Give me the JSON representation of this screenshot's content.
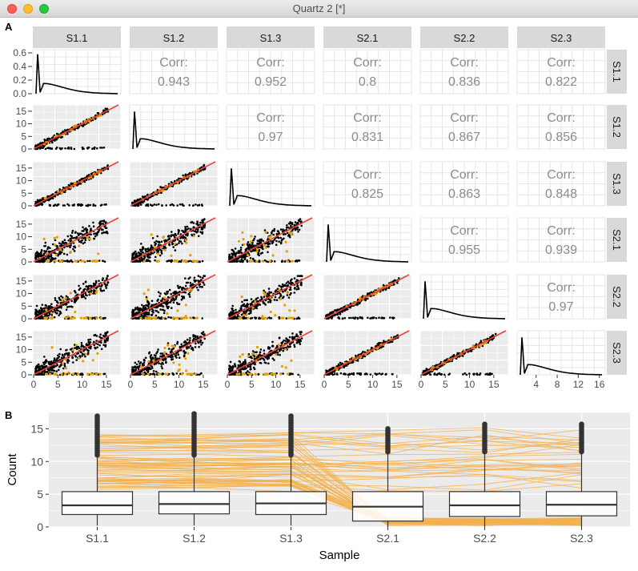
{
  "window": {
    "title": "Quartz 2 [*]"
  },
  "colors": {
    "panel_bg": "#ebebeb",
    "grid": "#ffffff",
    "strip_bg": "#d9d9d9",
    "point_black": "#000000",
    "point_orange": "#e69f00",
    "diagonal_red": "#e8423b",
    "line_orange": "#f3b04c",
    "corr_text": "#8c8c8c"
  },
  "panel_a": {
    "tag": "A",
    "samples": [
      "S1.1",
      "S1.2",
      "S1.3",
      "S2.1",
      "S2.2",
      "S2.3"
    ],
    "corr_label": "Corr:",
    "correlations": [
      {
        "row": 0,
        "col": 1,
        "value": "0.943"
      },
      {
        "row": 0,
        "col": 2,
        "value": "0.952"
      },
      {
        "row": 0,
        "col": 3,
        "value": "0.8"
      },
      {
        "row": 0,
        "col": 4,
        "value": "0.836"
      },
      {
        "row": 0,
        "col": 5,
        "value": "0.822"
      },
      {
        "row": 1,
        "col": 2,
        "value": "0.97"
      },
      {
        "row": 1,
        "col": 3,
        "value": "0.831"
      },
      {
        "row": 1,
        "col": 4,
        "value": "0.867"
      },
      {
        "row": 1,
        "col": 5,
        "value": "0.856"
      },
      {
        "row": 2,
        "col": 3,
        "value": "0.825"
      },
      {
        "row": 2,
        "col": 4,
        "value": "0.863"
      },
      {
        "row": 2,
        "col": 5,
        "value": "0.848"
      },
      {
        "row": 3,
        "col": 4,
        "value": "0.955"
      },
      {
        "row": 3,
        "col": 5,
        "value": "0.939"
      },
      {
        "row": 4,
        "col": 5,
        "value": "0.97"
      }
    ],
    "density_y_ticks": [
      "0.0",
      "0.2",
      "0.4",
      "0.6"
    ],
    "scatter_y_ticks": [
      "0",
      "5",
      "10",
      "15"
    ],
    "x_ticks": [
      "0",
      "5",
      "10",
      "15"
    ],
    "x_ticks_last": [
      "4",
      "8",
      "12",
      "16"
    ]
  },
  "panel_b": {
    "tag": "B",
    "xlabel": "Sample",
    "ylabel": "Count",
    "y_ticks": [
      "0",
      "5",
      "10",
      "15"
    ]
  },
  "chart_data": [
    {
      "type": "scatter",
      "title": "",
      "variables": [
        "S1.1",
        "S1.2",
        "S1.3",
        "S2.1",
        "S2.2",
        "S2.3"
      ],
      "lower_panels": "scatter of counts (black points, highlighted orange points) with red y=x line",
      "diagonal_panels": "density",
      "upper_panels": "correlation",
      "axis_range": [
        0,
        17
      ],
      "correlation_matrix": [
        [
          null,
          0.943,
          0.952,
          0.8,
          0.836,
          0.822
        ],
        [
          0.943,
          null,
          0.97,
          0.831,
          0.867,
          0.856
        ],
        [
          0.952,
          0.97,
          null,
          0.825,
          0.863,
          0.848
        ],
        [
          0.8,
          0.831,
          0.825,
          null,
          0.955,
          0.939
        ],
        [
          0.836,
          0.867,
          0.863,
          0.955,
          null,
          0.97
        ],
        [
          0.822,
          0.856,
          0.848,
          0.939,
          0.97,
          null
        ]
      ],
      "density_ylim": [
        0,
        0.6
      ]
    },
    {
      "type": "box",
      "xlabel": "Sample",
      "ylabel": "Count",
      "categories": [
        "S1.1",
        "S1.2",
        "S1.3",
        "S2.1",
        "S2.2",
        "S2.3"
      ],
      "ylim": [
        0,
        17.5
      ],
      "boxes": [
        {
          "name": "S1.1",
          "q1": 1.9,
          "median": 3.3,
          "q3": 5.4,
          "whisker_low": 0.2,
          "whisker_high": 11.0,
          "outlier_max": 17.0
        },
        {
          "name": "S1.2",
          "q1": 2.0,
          "median": 3.5,
          "q3": 5.4,
          "whisker_low": 0.2,
          "whisker_high": 11.0,
          "outlier_max": 17.5
        },
        {
          "name": "S1.3",
          "q1": 1.9,
          "median": 3.6,
          "q3": 5.4,
          "whisker_low": 0.2,
          "whisker_high": 11.0,
          "outlier_max": 17.1
        },
        {
          "name": "S2.1",
          "q1": 0.9,
          "median": 3.1,
          "q3": 5.4,
          "whisker_low": 0.0,
          "whisker_high": 11.5,
          "outlier_max": 15.2
        },
        {
          "name": "S2.2",
          "q1": 1.6,
          "median": 3.3,
          "q3": 5.4,
          "whisker_low": 0.0,
          "whisker_high": 11.5,
          "outlier_max": 16.0
        },
        {
          "name": "S2.3",
          "q1": 1.7,
          "median": 3.4,
          "q3": 5.4,
          "whisker_low": 0.0,
          "whisker_high": 11.5,
          "outlier_max": 15.9
        }
      ],
      "overlay": "orange lines connecting highlighted features across samples"
    }
  ]
}
